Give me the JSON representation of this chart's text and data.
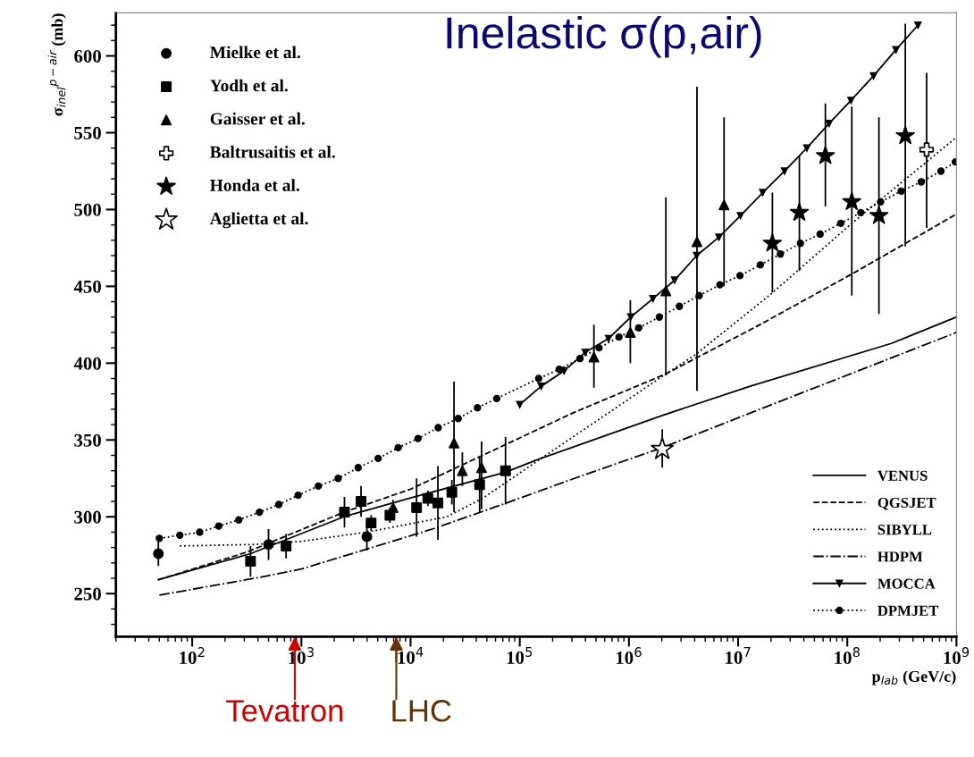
{
  "chart_data": {
    "type": "scatter",
    "title": "Inelastic σ(p,air)",
    "xlabel": "p$_{lab}$ (GeV/c)",
    "ylabel": "σ$_{inel}$$^{p−air}$ (mb)",
    "log": "x",
    "xlim": [
      20,
      1000000000
    ],
    "ylim": [
      222,
      628
    ],
    "xticks": [
      {
        "value": 100,
        "label": "10$^{2}$"
      },
      {
        "value": 1000,
        "label": "10$^{3}$"
      },
      {
        "value": 10000,
        "label": "10$^{4}$"
      },
      {
        "value": 100000,
        "label": "10$^{5}$"
      },
      {
        "value": 1000000,
        "label": "10$^{6}$"
      },
      {
        "value": 10000000,
        "label": "10$^{7}$"
      },
      {
        "value": 100000000,
        "label": "10$^{8}$"
      },
      {
        "value": 1000000000,
        "label": "10$^{9}$"
      }
    ],
    "yticks": [
      250,
      300,
      350,
      400,
      450,
      500,
      550,
      600
    ],
    "grid": false,
    "legend": "bottom right",
    "series": [
      {
        "name": "Mielke et al.",
        "type": "scatter",
        "marker": "circle",
        "color": "#000000",
        "x": [
          49,
          500,
          3980
        ],
        "values": [
          276,
          282,
          287
        ],
        "errors": [
          8,
          10,
          9
        ]
      },
      {
        "name": "Yodh et al.",
        "type": "scatter",
        "marker": "square",
        "color": "#000000",
        "x": [
          342,
          724,
          2480,
          3520,
          4350,
          6470,
          11350,
          14400,
          17800,
          23900,
          42900,
          74100
        ],
        "values": [
          271,
          281,
          303,
          310,
          296,
          301,
          306,
          312,
          309,
          316,
          321,
          330
        ],
        "errors": [
          10,
          8,
          10,
          10,
          5,
          5,
          19,
          5,
          24,
          8,
          18,
          22
        ]
      },
      {
        "name": "Gaisser et al.",
        "type": "scatter",
        "marker": "triangle",
        "color": "#000000",
        "x": [
          6920,
          25000,
          29800,
          44700,
          478000,
          1030000,
          2180000,
          4200000,
          7430000
        ],
        "values": [
          306,
          348,
          330,
          332,
          404,
          420,
          447,
          479,
          503
        ],
        "errors": [
          5,
          [
            303,
            388
          ],
          [
            320,
            342
          ],
          [
            305,
            349
          ],
          [
            384,
            425
          ],
          [
            400,
            441
          ],
          [
            392,
            508
          ],
          [
            382,
            580
          ],
          [
            450,
            560
          ]
        ]
      },
      {
        "name": "Baltrusaitis et al.",
        "type": "scatter",
        "marker": "cross",
        "color": "#ffffff",
        "x": [
          533000000
        ],
        "values": [
          539
        ],
        "errors": [
          [
            488,
            589
          ]
        ]
      },
      {
        "name": "Honda et al.",
        "type": "scatter",
        "marker": "star",
        "color": "#000000",
        "x": [
          20600000,
          36400000,
          63000000,
          110000000,
          195000000,
          340000000
        ],
        "values": [
          478,
          498,
          535,
          505,
          496,
          548
        ],
        "errors": [
          [
            446,
            511
          ],
          [
            460,
            535
          ],
          [
            502,
            569
          ],
          [
            444,
            567
          ],
          [
            432,
            560
          ],
          [
            476,
            621
          ]
        ]
      },
      {
        "name": "Aglietta et al.",
        "type": "scatter",
        "marker": "star",
        "color": "#ffffff",
        "x": [
          2020000
        ],
        "values": [
          344
        ],
        "errors": [
          [
            332,
            357
          ]
        ]
      },
      {
        "name": "VENUS",
        "type": "line",
        "line_style": "solid",
        "color": "#000000",
        "x": [
          49,
          342,
          2450,
          10900,
          74100,
          143000,
          2020000,
          12900000,
          257000000,
          1000000000
        ],
        "values": [
          259,
          276,
          300,
          313,
          329,
          337,
          366,
          385,
          413,
          430
        ]
      },
      {
        "name": "QGSJET",
        "type": "line",
        "line_style": "dashed",
        "color": "#000000",
        "x": [
          49,
          316,
          2450,
          10000,
          45700,
          316000,
          2180000,
          15800000,
          110000000,
          1000000000
        ],
        "values": [
          259,
          277,
          303,
          318,
          340,
          368,
          393,
          425,
          458,
          497
        ]
      },
      {
        "name": "SIBYLL",
        "type": "line",
        "line_style": "dotted",
        "color": "#000000",
        "x": [
          77,
          374,
          1000,
          3980,
          21500,
          45700,
          143000,
          631000,
          2180000,
          3980000,
          20000000,
          110000000,
          1000000000
        ],
        "values": [
          281,
          282,
          284,
          290,
          300,
          312,
          336,
          367,
          393,
          405,
          445,
          491,
          547
        ]
      },
      {
        "name": "HDPM",
        "type": "line",
        "line_style": "dashdot",
        "color": "#000000",
        "x": [
          50,
          374,
          1000,
          3980,
          15800,
          63100,
          316000,
          2020000,
          15800000,
          126000000,
          1000000000
        ],
        "values": [
          249,
          260,
          266,
          279,
          292,
          307,
          325,
          345,
          370,
          395,
          420
        ]
      },
      {
        "name": "MOCCA",
        "type": "line",
        "line_style": "solid",
        "marker": "triangle",
        "color": "#000000",
        "x": [
          100000,
          157000,
          255000,
          398000,
          650000,
          1040000,
          1660000,
          2620000,
          4170000,
          6670000,
          10500000,
          16800000,
          26600000,
          42600000,
          68100000,
          108000000,
          174000000,
          279000000,
          444000000
        ],
        "values": [
          373,
          385,
          395,
          407,
          416,
          430,
          442,
          454,
          470,
          482,
          496,
          511,
          525,
          540,
          556,
          571,
          587,
          604,
          620
        ]
      },
      {
        "name": "DPMJET",
        "type": "line",
        "line_style": "dotted",
        "marker": "circle",
        "color": "#000000",
        "x": [
          50,
          77,
          117,
          175,
          267,
          413,
          621,
          933,
          1430,
          2170,
          3310,
          5050,
          7710,
          11700,
          17900,
          27300,
          41000,
          61500,
          149000,
          230000,
          356000,
          532000,
          811000,
          1230000,
          1900000,
          2900000,
          4400000,
          6810000,
          10400000,
          16000000,
          24400000,
          37200000,
          56400000,
          87100000,
          133000000,
          202000000,
          312000000,
          476000000,
          721000000,
          977000000
        ],
        "values": [
          286,
          288,
          290,
          294,
          298,
          303,
          308,
          314,
          320,
          325,
          332,
          338,
          345,
          351,
          358,
          364,
          371,
          377,
          390,
          396,
          403,
          410,
          417,
          423,
          430,
          437,
          444,
          451,
          457,
          464,
          471,
          478,
          484,
          491,
          498,
          505,
          512,
          518,
          525,
          531
        ]
      }
    ],
    "ref_lines": [
      {
        "axis": "x",
        "value": 870,
        "label": "Tevatron",
        "color": "#cc0000"
      },
      {
        "axis": "x",
        "value": 7400,
        "label": "LHC",
        "color": "#663300"
      }
    ]
  }
}
